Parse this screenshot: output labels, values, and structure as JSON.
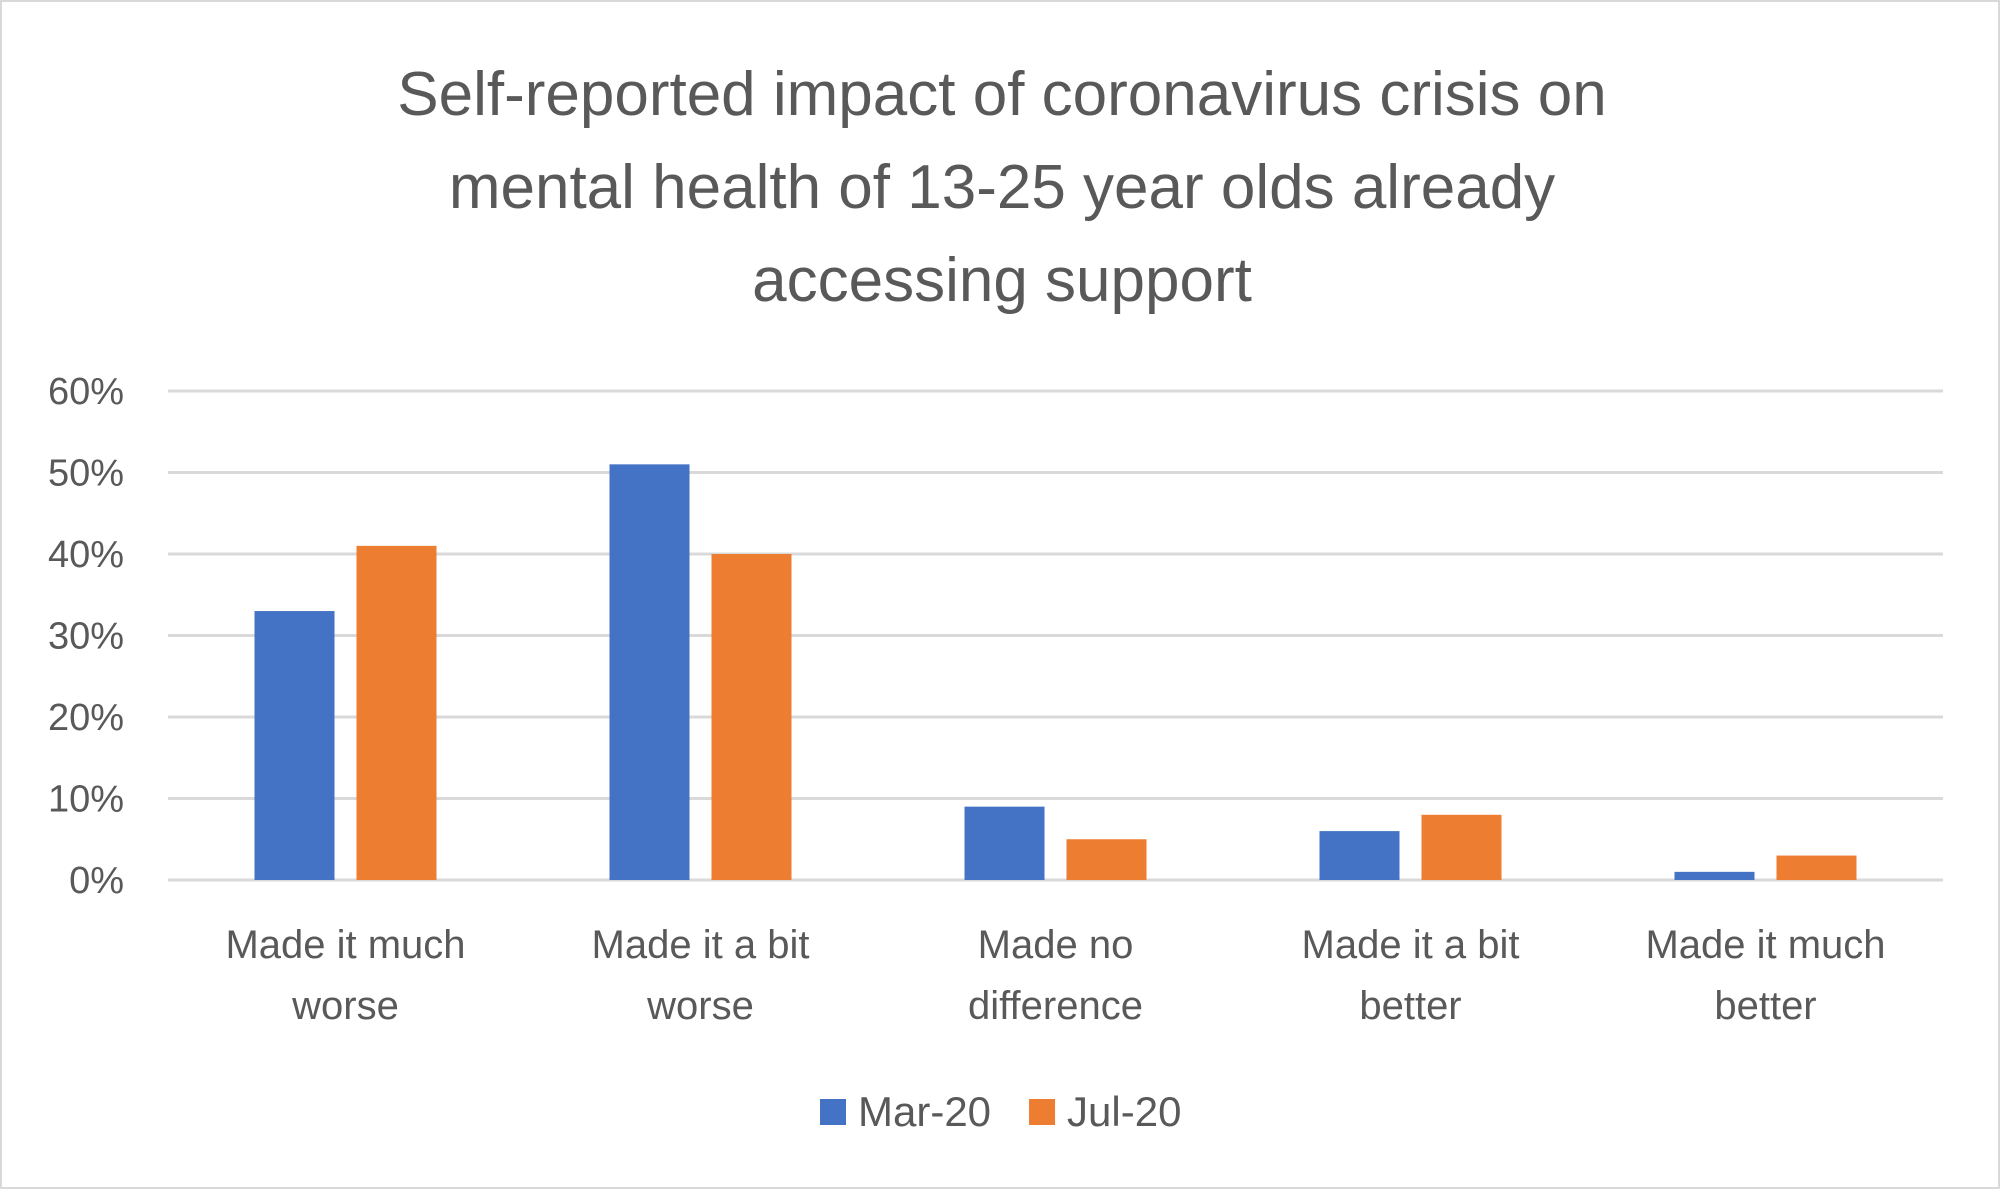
{
  "chart_data": {
    "type": "bar",
    "title": [
      "Self-reported impact of coronavirus crisis on",
      "mental health of 13-25 year olds already",
      "accessing support"
    ],
    "xlabel": "",
    "ylabel": "",
    "categories": [
      [
        "Made it much",
        "worse"
      ],
      [
        "Made it a bit",
        "worse"
      ],
      [
        "Made no",
        "difference"
      ],
      [
        "Made it a bit",
        "better"
      ],
      [
        "Made it much",
        "better"
      ]
    ],
    "series": [
      {
        "name": "Mar-20",
        "color": "#4472C4",
        "values": [
          33,
          51,
          9,
          6,
          1
        ]
      },
      {
        "name": "Jul-20",
        "color": "#ED7D31",
        "values": [
          41,
          40,
          5,
          8,
          3
        ]
      }
    ],
    "ylim": [
      0,
      60
    ],
    "yticks": [
      0,
      10,
      20,
      30,
      40,
      50,
      60
    ],
    "ytick_labels": [
      "0%",
      "10%",
      "20%",
      "30%",
      "40%",
      "50%",
      "60%"
    ],
    "grid": true,
    "legend": "bottom-center"
  }
}
